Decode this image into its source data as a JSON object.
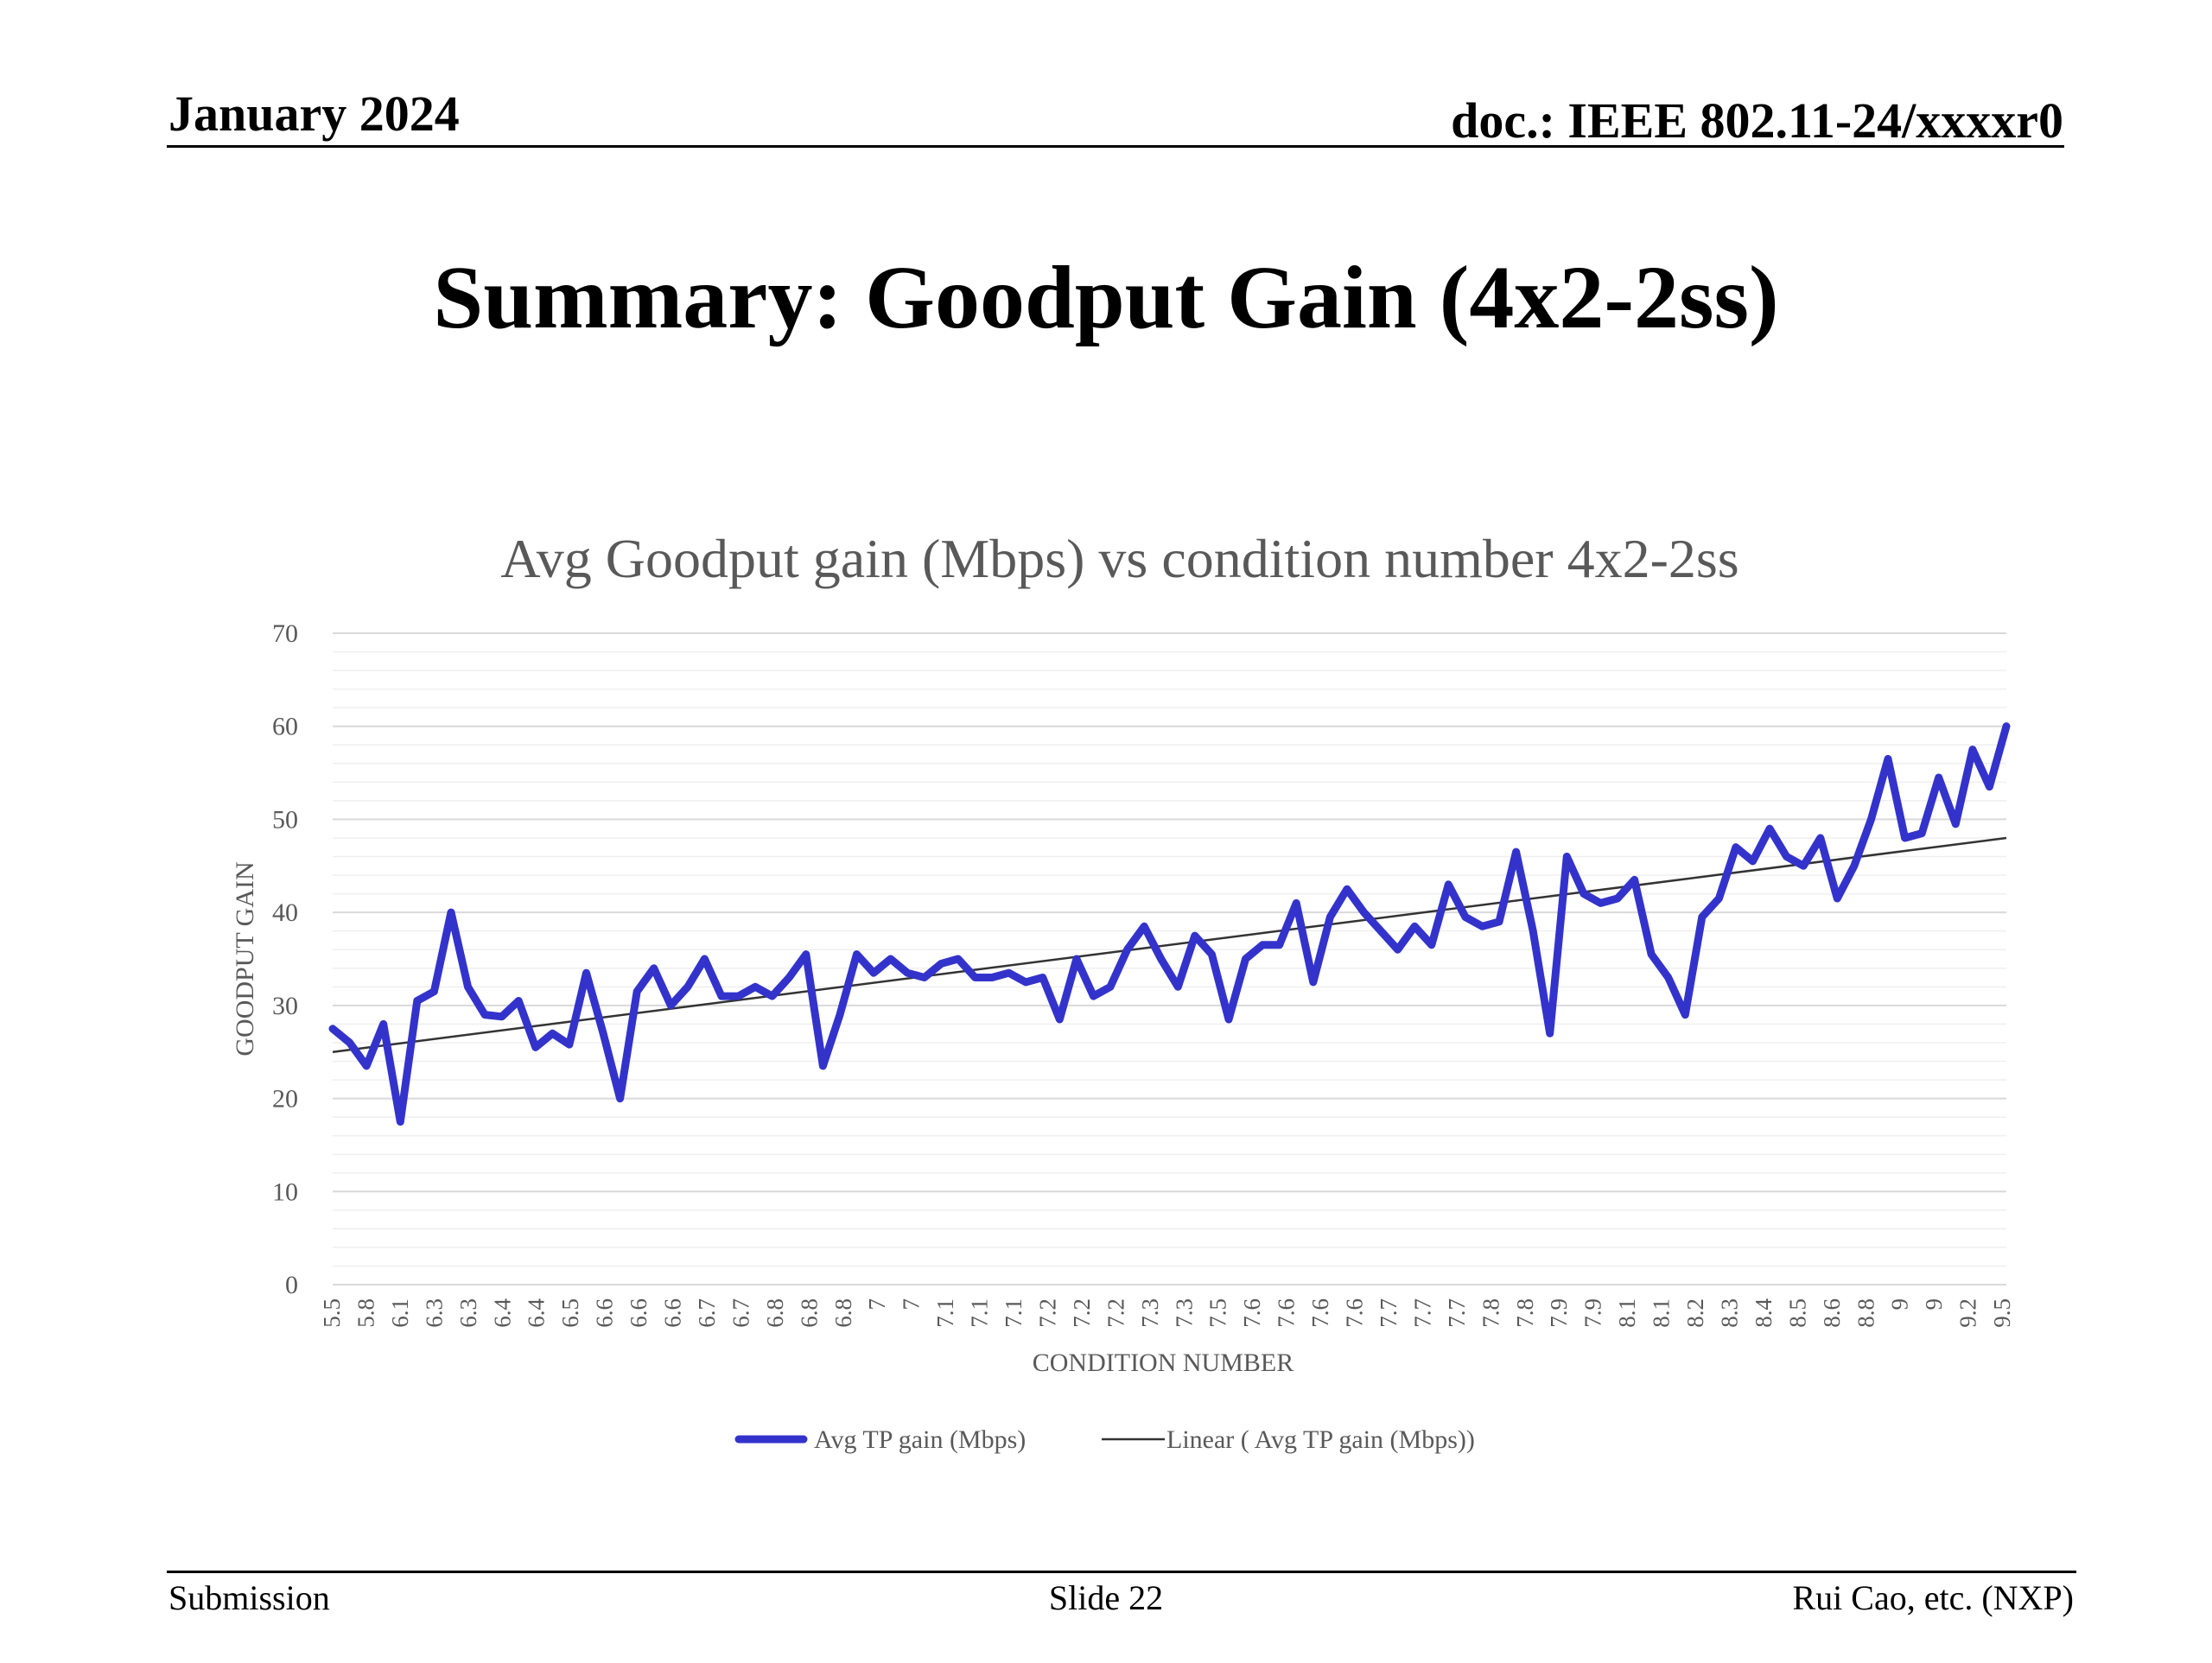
{
  "header": {
    "date": "January 2024",
    "doc": "doc.: IEEE 802.11-24/xxxxr0"
  },
  "slide": {
    "title": "Summary: Goodput Gain (4x2-2ss)"
  },
  "footer": {
    "left": "Submission",
    "center": "Slide 22",
    "right": "Rui Cao, etc. (NXP)"
  },
  "colors": {
    "series": "#3333cc",
    "trendline": "#333333",
    "gridline": "#d9d9d9",
    "axis_text": "#595959"
  },
  "chart_data": {
    "type": "line",
    "title": "Avg Goodput gain (Mbps) vs condition number 4x2-2ss",
    "xlabel": "CONDITION NUMBER",
    "ylabel": "GOODPUT GAIN",
    "ylim": [
      0,
      70
    ],
    "yticks": [
      0,
      10,
      20,
      30,
      40,
      50,
      60,
      70
    ],
    "grid": true,
    "legend_position": "bottom",
    "x_tick_labels": [
      "5.5",
      "5.8",
      "6.1",
      "6.3",
      "6.3",
      "6.4",
      "6.4",
      "6.5",
      "6.6",
      "6.6",
      "6.6",
      "6.7",
      "6.7",
      "6.8",
      "6.8",
      "6.8",
      "7",
      "7",
      "7.1",
      "7.1",
      "7.1",
      "7.2",
      "7.2",
      "7.2",
      "7.3",
      "7.3",
      "7.5",
      "7.6",
      "7.6",
      "7.6",
      "7.6",
      "7.7",
      "7.7",
      "7.7",
      "7.8",
      "7.8",
      "7.9",
      "7.9",
      "8.1",
      "8.1",
      "8.2",
      "8.3",
      "8.4",
      "8.5",
      "8.6",
      "8.8",
      "9",
      "9",
      "9.2",
      "9.5"
    ],
    "series": [
      {
        "name": "Avg TP gain (Mbps)",
        "values": [
          27.5,
          26.0,
          23.5,
          28.0,
          17.5,
          30.5,
          31.5,
          40.0,
          32.0,
          29.0,
          28.8,
          30.5,
          25.5,
          27.0,
          25.8,
          33.5,
          27.0,
          20.0,
          31.5,
          34.0,
          30.0,
          32.0,
          35.0,
          31.0,
          31.0,
          32.0,
          31.0,
          33.0,
          35.5,
          23.5,
          29.0,
          35.5,
          33.5,
          35.0,
          33.5,
          33.0,
          34.5,
          35.0,
          33.0,
          33.0,
          33.5,
          32.5,
          33.0,
          28.5,
          35.0,
          31.0,
          32.0,
          36.0,
          38.5,
          35.0,
          32.0,
          37.5,
          35.5,
          28.5,
          35.0,
          36.5,
          36.5,
          41.0,
          32.5,
          39.5,
          42.5,
          40.0,
          38.0,
          36.0,
          38.5,
          36.5,
          43.0,
          39.5,
          38.5,
          39.0,
          46.5,
          38.0,
          27.0,
          46.0,
          42.0,
          41.0,
          41.5,
          43.5,
          35.5,
          33.0,
          29.0,
          39.5,
          41.5,
          47.0,
          45.5,
          49.0,
          46.0,
          45.0,
          48.0,
          41.5,
          45.0,
          50.0,
          56.5,
          48.0,
          48.5,
          54.5,
          49.5,
          57.5,
          53.5,
          60.0
        ]
      },
      {
        "name": "Linear ( Avg TP gain (Mbps))",
        "trendline": true,
        "start": 25.0,
        "end": 48.0
      }
    ]
  }
}
